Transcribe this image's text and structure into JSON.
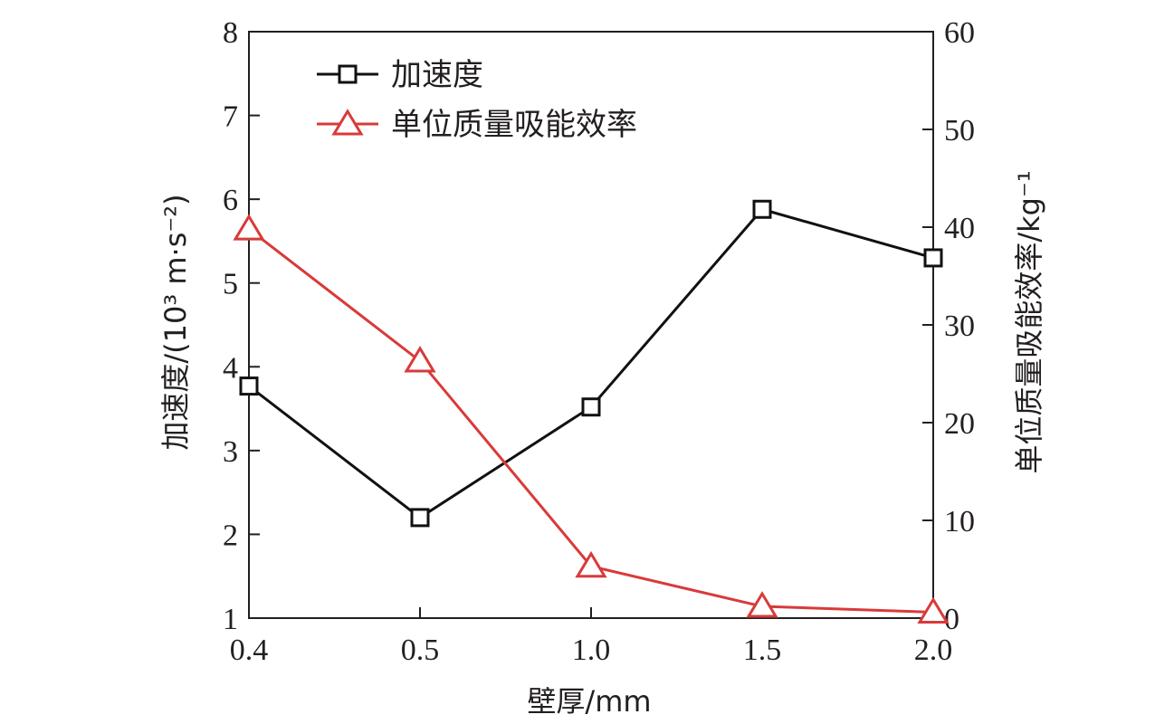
{
  "chart_data": {
    "type": "line",
    "x_categories": [
      "0.4",
      "0.5",
      "1.0",
      "1.5",
      "2.0"
    ],
    "xlabel": "壁厚/mm",
    "ylabel_left": "加速度/(10³ m·s⁻²)",
    "ylabel_right": "单位质量吸能效率/kg⁻¹",
    "ylim_left": [
      1,
      8
    ],
    "ylim_right": [
      0,
      60
    ],
    "yticks_left": [
      "1",
      "2",
      "3",
      "4",
      "5",
      "6",
      "7",
      "8"
    ],
    "yticks_right": [
      "0",
      "10",
      "20",
      "30",
      "40",
      "50",
      "60"
    ],
    "series": [
      {
        "name": "加速度",
        "axis": "left",
        "marker": "square",
        "color": "#111111",
        "values": [
          3.77,
          2.2,
          3.52,
          5.88,
          5.3
        ]
      },
      {
        "name": "单位质量吸能效率",
        "axis": "right",
        "marker": "triangle",
        "color": "#d93a3a",
        "values": [
          39.8,
          26.3,
          5.3,
          1.2,
          0.6
        ]
      }
    ],
    "legend_position": "top-left",
    "grid": false
  }
}
